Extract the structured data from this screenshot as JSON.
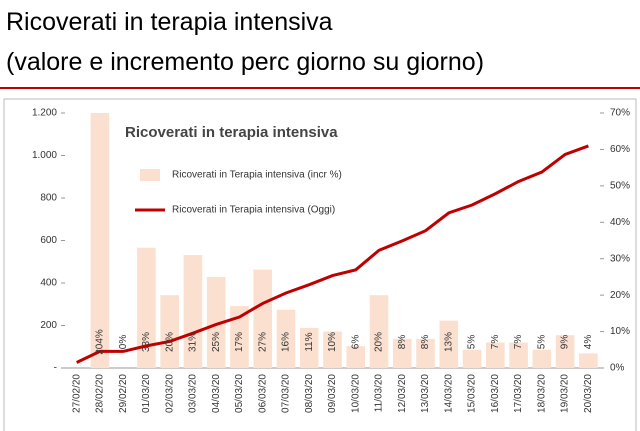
{
  "header": {
    "title": "Ricoverati in terapia intensiva",
    "subtitle": "(valore e incremento perc giorno su giorno)"
  },
  "chart_data": {
    "type": "bar",
    "title": "Ricoverati in terapia intensiva",
    "categories": [
      "27/02/20",
      "28/02/20",
      "29/02/20",
      "01/03/20",
      "02/03/20",
      "03/03/20",
      "04/03/20",
      "05/03/20",
      "06/03/20",
      "07/03/20",
      "08/03/20",
      "09/03/20",
      "10/03/20",
      "11/03/20",
      "12/03/20",
      "13/03/20",
      "14/03/20",
      "15/03/20",
      "16/03/20",
      "17/03/20",
      "18/03/20",
      "19/03/20",
      "20/03/20"
    ],
    "series": [
      {
        "name": "Ricoverati in Terapia intensiva (incr %)",
        "type": "bar",
        "axis": "y2",
        "color": "#fbe0d0",
        "values": [
          null,
          204,
          0,
          33,
          20,
          31,
          25,
          17,
          27,
          16,
          11,
          10,
          6,
          20,
          8,
          8,
          13,
          5,
          7,
          7,
          5,
          9,
          4
        ],
        "value_labels": [
          null,
          "204%",
          "0%",
          "33%",
          "20%",
          "31%",
          "25%",
          "17%",
          "27%",
          "16%",
          "11%",
          "10%",
          "6%",
          "20%",
          "8%",
          "8%",
          "13%",
          "5%",
          "7%",
          "7%",
          "5%",
          "9%",
          "4%"
        ]
      },
      {
        "name": "Ricoverati in Terapia intensiva (Oggi)",
        "type": "line",
        "color": "#c00000",
        "values": [
          26,
          78,
          78,
          104,
          125,
          164,
          205,
          240,
          304,
          353,
          392,
          435,
          462,
          554,
          598,
          646,
          730,
          767,
          820,
          878,
          922,
          1005,
          1045
        ]
      }
    ],
    "ylim": [
      0,
      1200
    ],
    "yticks": [
      {
        "value": 0,
        "label": "-"
      },
      200,
      400,
      600,
      800,
      {
        "value": 1000,
        "label": "1.000"
      },
      {
        "value": 1200,
        "label": "1.200"
      }
    ],
    "y2lim": [
      0,
      70
    ],
    "y2ticks": [
      {
        "value": 0,
        "label": "0%"
      },
      {
        "value": 10,
        "label": "10%"
      },
      {
        "value": 20,
        "label": "20%"
      },
      {
        "value": 30,
        "label": "30%"
      },
      {
        "value": 40,
        "label": "40%"
      },
      {
        "value": 50,
        "label": "50%"
      },
      {
        "value": 60,
        "label": "60%"
      },
      {
        "value": 70,
        "label": "70%"
      }
    ]
  }
}
